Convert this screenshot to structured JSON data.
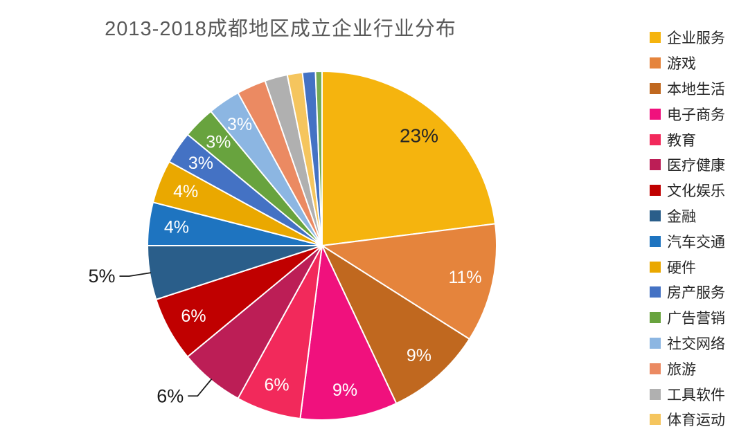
{
  "title": {
    "text": "2013-2018成都地区成立企业行业分布",
    "color": "#595959"
  },
  "chart_data": {
    "type": "pie",
    "title": "2013-2018成都地区成立企业行业分布",
    "start_angle_deg": 0,
    "direction": "clockwise",
    "legend_position": "right",
    "background": "#ffffff",
    "separator_color": "#ffffff",
    "leader_line_color": "#1a1a1a",
    "outside_label_color": "#1a1a1a",
    "slices": [
      {
        "label": "企业服务",
        "value": 23,
        "display": "23%",
        "color": "#F5B40E",
        "label_style": "inside",
        "label_color": "#262626",
        "in_legend": true
      },
      {
        "label": "游戏",
        "value": 11,
        "display": "11%",
        "color": "#E5843C",
        "label_style": "inside",
        "label_color": "#ffffff",
        "in_legend": true
      },
      {
        "label": "本地生活",
        "value": 9,
        "display": "9%",
        "color": "#C0681F",
        "label_style": "inside",
        "label_color": "#ffffff",
        "in_legend": true
      },
      {
        "label": "电子商务",
        "value": 9,
        "display": "9%",
        "color": "#F0117D",
        "label_style": "inside",
        "label_color": "#ffffff",
        "in_legend": true
      },
      {
        "label": "教育",
        "value": 6,
        "display": "6%",
        "color": "#F2295B",
        "label_style": "inside",
        "label_color": "#ffffff",
        "in_legend": true
      },
      {
        "label": "医疗健康",
        "value": 6,
        "display": "6%",
        "color": "#BC1E56",
        "label_style": "outside",
        "label_color": "#1a1a1a",
        "in_legend": true
      },
      {
        "label": "文化娱乐",
        "value": 6,
        "display": "6%",
        "color": "#C00000",
        "label_style": "inside",
        "label_color": "#ffffff",
        "in_legend": true
      },
      {
        "label": "金融",
        "value": 5,
        "display": "5%",
        "color": "#2A5E8A",
        "label_style": "outside",
        "label_color": "#1a1a1a",
        "in_legend": true
      },
      {
        "label": "汽车交通",
        "value": 4,
        "display": "4%",
        "color": "#1E74C0",
        "label_style": "inside",
        "label_color": "#ffffff",
        "in_legend": true
      },
      {
        "label": "硬件",
        "value": 4,
        "display": "4%",
        "color": "#EAA800",
        "label_style": "inside",
        "label_color": "#ffffff",
        "in_legend": true
      },
      {
        "label": "房产服务",
        "value": 3,
        "display": "3%",
        "color": "#4472C4",
        "label_style": "inside",
        "label_color": "#ffffff",
        "in_legend": true
      },
      {
        "label": "广告营销",
        "value": 3,
        "display": "3%",
        "color": "#68A33E",
        "label_style": "inside",
        "label_color": "#ffffff",
        "in_legend": true
      },
      {
        "label": "社交网络",
        "value": 3,
        "display": "3%",
        "color": "#8CB6E2",
        "label_style": "inside",
        "label_color": "#ffffff",
        "in_legend": true
      },
      {
        "label": "旅游",
        "value": 2.7,
        "display": "",
        "color": "#EB8A62",
        "label_style": "none",
        "label_color": "",
        "in_legend": true
      },
      {
        "label": "工具软件",
        "value": 2.1,
        "display": "",
        "color": "#B0B0B0",
        "label_style": "none",
        "label_color": "",
        "in_legend": true
      },
      {
        "label": "体育运动",
        "value": 1.4,
        "display": "",
        "color": "#F5C55E",
        "label_style": "none",
        "label_color": "",
        "in_legend": true
      },
      {
        "label": "",
        "value": 1.2,
        "display": "",
        "color": "#4472C4",
        "label_style": "none",
        "label_color": "",
        "in_legend": false
      },
      {
        "label": "",
        "value": 0.6,
        "display": "",
        "color": "#76AC53",
        "label_style": "none",
        "label_color": "",
        "in_legend": false
      }
    ]
  }
}
